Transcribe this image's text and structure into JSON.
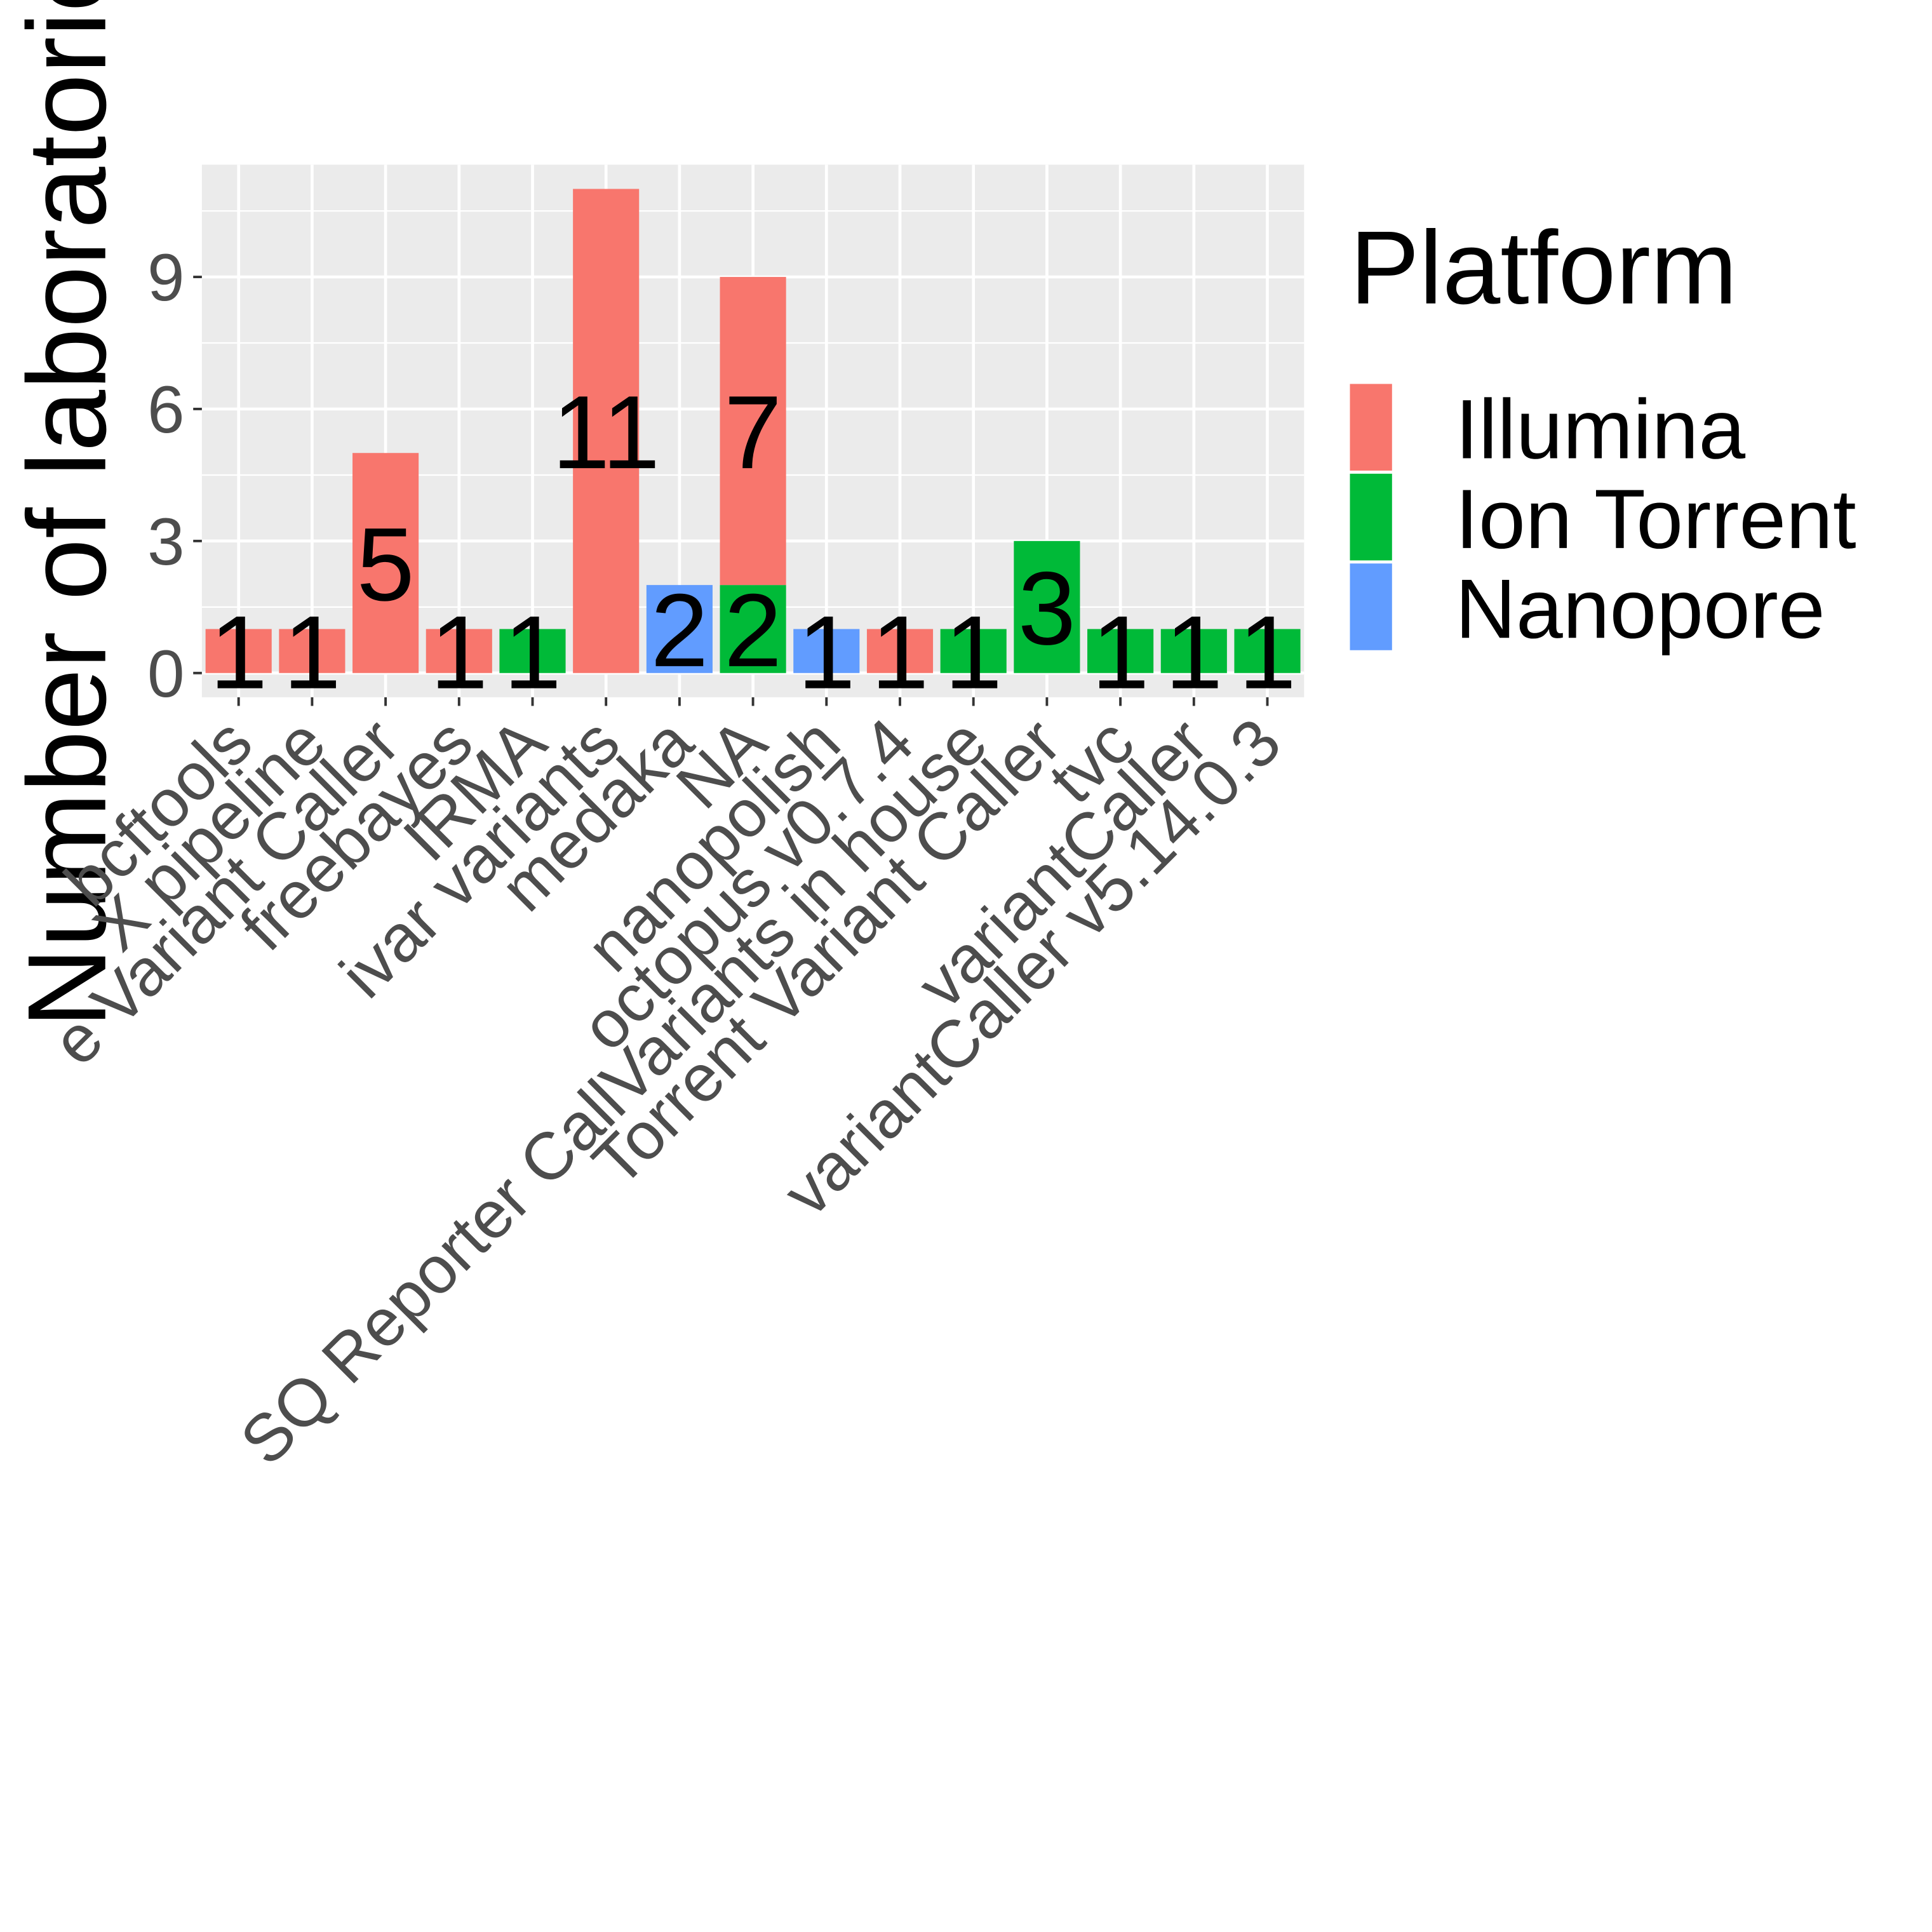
{
  "chart_data": {
    "type": "bar",
    "stacked": true,
    "y_label": "Number of laboratories",
    "legend_title": "Platform",
    "legend_position": "right",
    "categories": [
      "bcftools",
      "X pipeline",
      "e Variant Caller",
      "freebayes",
      "IRMA",
      "ivar variants",
      "medaka",
      "NA",
      "nanopolish",
      "octopus v0.7.4",
      "SQ Reporter CallVariants in house",
      "Torrent Variant Caller",
      "tvc",
      "variantCaller",
      "variantCaller v5.14.0.3"
    ],
    "series": [
      {
        "name": "Illumina",
        "color": "#F8766D",
        "values": [
          1,
          1,
          5,
          1,
          null,
          11,
          null,
          7,
          null,
          1,
          null,
          null,
          null,
          null,
          null
        ]
      },
      {
        "name": "Ion Torrent",
        "color": "#00BA38",
        "values": [
          null,
          null,
          null,
          null,
          1,
          null,
          null,
          2,
          null,
          null,
          1,
          3,
          1,
          1,
          1
        ]
      },
      {
        "name": "Nanopore",
        "color": "#619CFF",
        "values": [
          null,
          null,
          null,
          null,
          null,
          null,
          2,
          null,
          1,
          null,
          null,
          null,
          null,
          null,
          null
        ]
      }
    ],
    "ylim": [
      -0.55,
      11.55
    ],
    "yticks": [
      0,
      3,
      6,
      9
    ],
    "grid": true
  }
}
